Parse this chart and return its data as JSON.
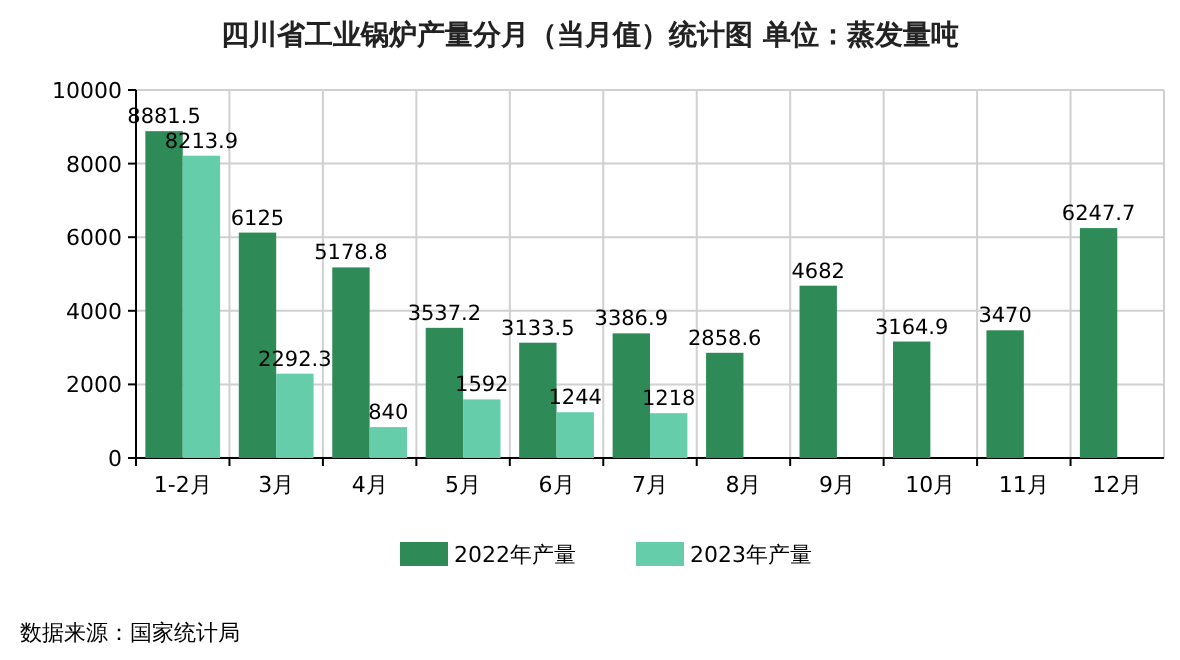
{
  "chart_data": {
    "type": "bar",
    "title": "四川省工业锅炉产量分月（当月值）统计图 单位：蒸发量吨",
    "categories": [
      "1-2月",
      "3月",
      "4月",
      "5月",
      "6月",
      "7月",
      "8月",
      "9月",
      "10月",
      "11月",
      "12月"
    ],
    "series": [
      {
        "name": "2022年产量",
        "color": "#2e8b57",
        "values": [
          8881.5,
          6125,
          5178.8,
          3537.2,
          3133.5,
          3386.9,
          2858.6,
          4682,
          3164.9,
          3470,
          6247.7
        ]
      },
      {
        "name": "2023年产量",
        "color": "#66cdaa",
        "values": [
          8213.9,
          2292.3,
          840,
          1592,
          1244,
          1218,
          null,
          null,
          null,
          null,
          null
        ]
      }
    ],
    "ylim": [
      0,
      10000
    ],
    "yticks": [
      0,
      2000,
      4000,
      6000,
      8000,
      10000
    ],
    "grid": true,
    "legend": "bottom",
    "data_labels": true,
    "annotations": [
      "数据来源：国家统计局"
    ]
  }
}
